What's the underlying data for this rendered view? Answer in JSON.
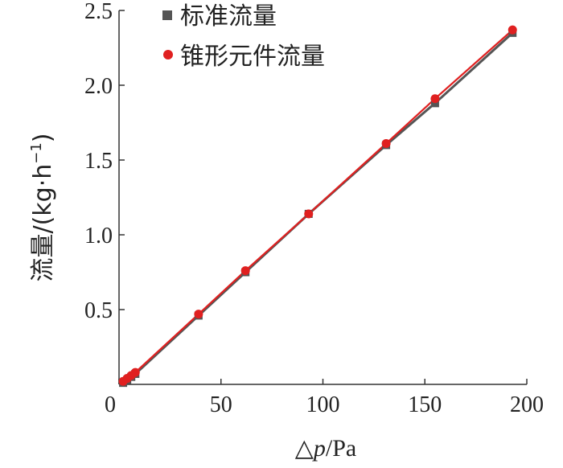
{
  "chart_data": {
    "type": "scatter",
    "xlabel_symbol": "△",
    "xlabel_var": "p",
    "xlabel_unit": "/Pa",
    "ylabel_text": "流量/(kg·h",
    "ylabel_sup": "−1",
    "ylabel_close": ")",
    "xlim": [
      0,
      200
    ],
    "ylim": [
      0,
      2.5
    ],
    "x_ticks": [
      0,
      50,
      100,
      150,
      200
    ],
    "x_tick_labels": [
      "0",
      "50",
      "100",
      "150",
      "200"
    ],
    "y_ticks": [
      0.5,
      1.0,
      1.5,
      2.0,
      2.5
    ],
    "y_tick_labels": [
      "0.5",
      "1.0",
      "1.5",
      "2.0",
      "2.5"
    ],
    "legend_position": "top-left",
    "series": [
      {
        "name": "标准流量",
        "marker": "square",
        "color": "#555555",
        "x": [
          2,
          4,
          6,
          8,
          39,
          62,
          93,
          131,
          155,
          193
        ],
        "y": [
          0.01,
          0.03,
          0.05,
          0.07,
          0.46,
          0.75,
          1.14,
          1.6,
          1.88,
          2.35
        ]
      },
      {
        "name": "锥形元件流量",
        "marker": "circle",
        "color": "#e02020",
        "x": [
          2,
          4,
          6,
          8,
          39,
          62,
          93,
          131,
          155,
          193
        ],
        "y": [
          0.02,
          0.04,
          0.06,
          0.08,
          0.47,
          0.76,
          1.14,
          1.61,
          1.91,
          2.37
        ]
      }
    ]
  }
}
